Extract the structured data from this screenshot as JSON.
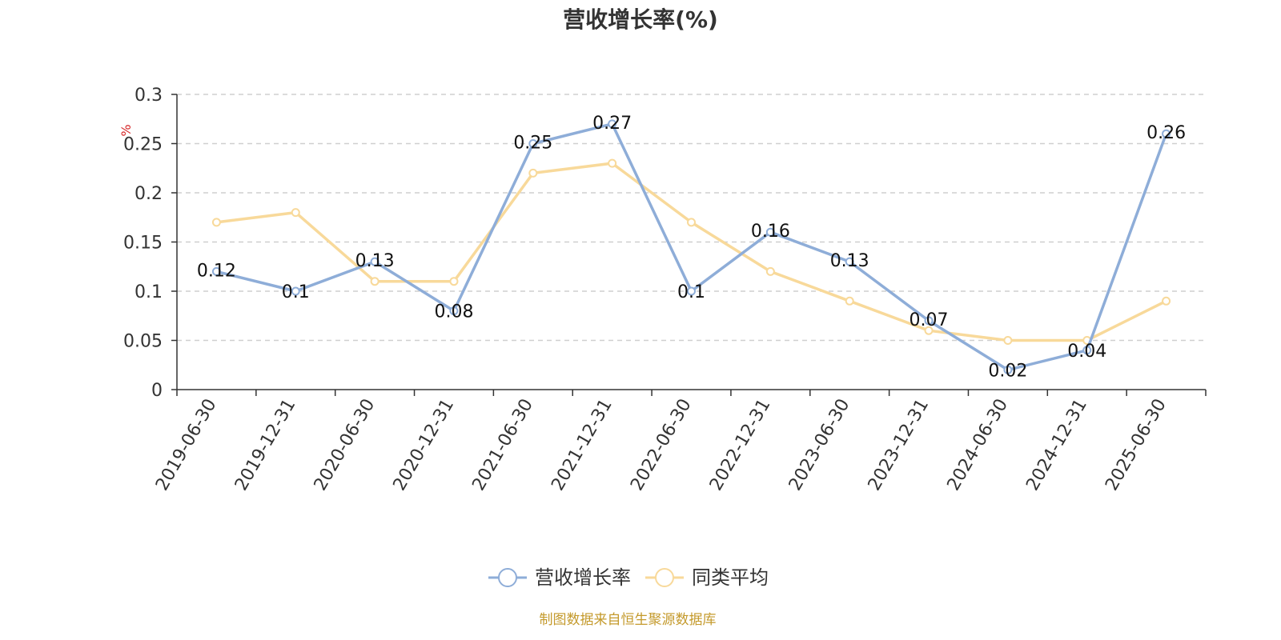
{
  "chart_data": {
    "type": "line",
    "title": "营收增长率(%)",
    "ylabel": "%",
    "xlabel": "",
    "categories": [
      "2019-06-30",
      "2019-12-31",
      "2020-06-30",
      "2020-12-31",
      "2021-06-30",
      "2021-12-31",
      "2022-06-30",
      "2022-12-31",
      "2023-06-30",
      "2023-12-31",
      "2024-06-30",
      "2024-12-31",
      "2025-06-30"
    ],
    "ylim": [
      0,
      0.3
    ],
    "yticks": [
      "0",
      "0.05",
      "0.1",
      "0.15",
      "0.2",
      "0.25",
      "0.3"
    ],
    "grid": true,
    "legend_position": "bottom",
    "series": [
      {
        "name": "营收增长率",
        "color": "#8eadd8",
        "values": [
          0.12,
          0.1,
          0.13,
          0.08,
          0.25,
          0.27,
          0.1,
          0.16,
          0.13,
          0.07,
          0.02,
          0.04,
          0.26
        ],
        "labels": [
          "0.12",
          "0.1",
          "0.13",
          "0.08",
          "0.25",
          "0.27",
          "0.1",
          "0.16",
          "0.13",
          "0.07",
          "0.02",
          "0.04",
          "0.26"
        ]
      },
      {
        "name": "同类平均",
        "color": "#f8d99a",
        "values": [
          0.17,
          0.18,
          0.11,
          0.11,
          0.22,
          0.23,
          0.17,
          0.12,
          0.09,
          0.06,
          0.05,
          0.05,
          0.09
        ]
      }
    ],
    "source": "制图数据来自恒生聚源数据库"
  }
}
